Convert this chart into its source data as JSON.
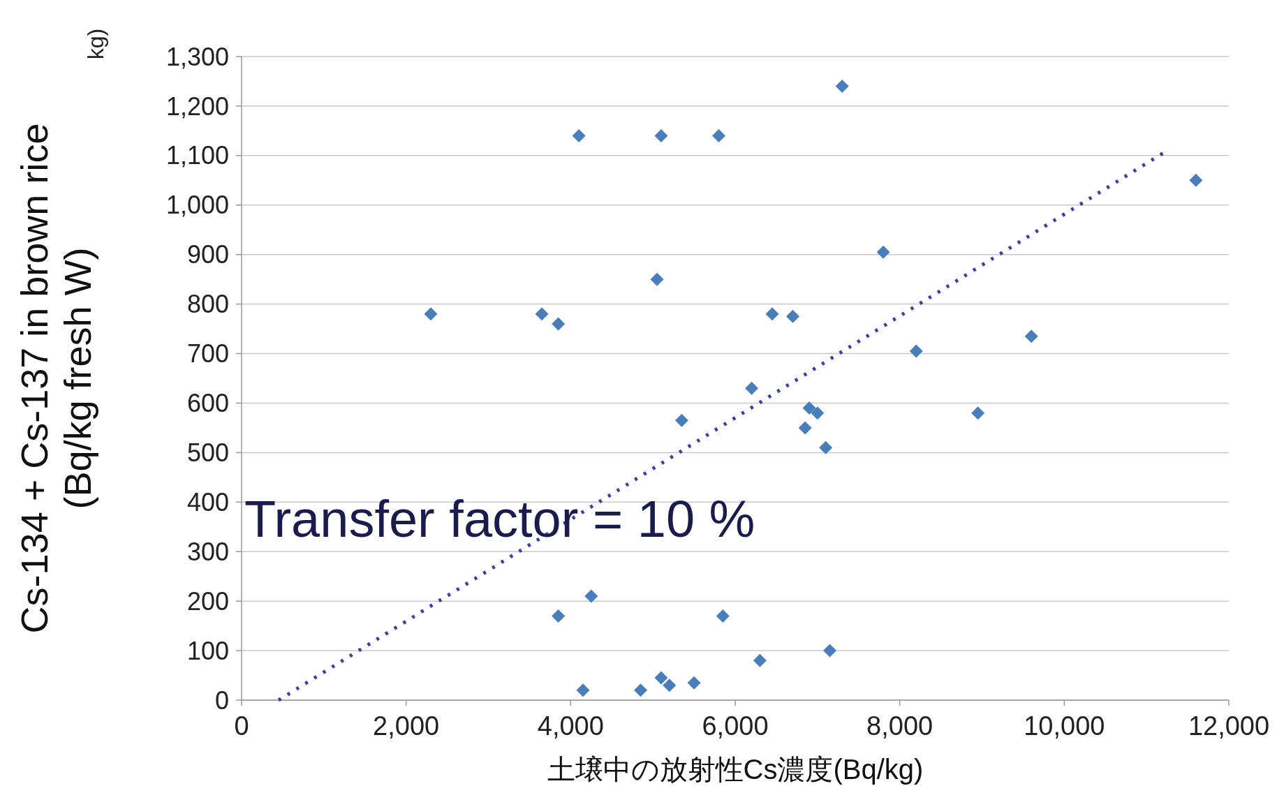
{
  "chart_data": {
    "type": "scatter",
    "xlabel": "土壌中の放射性Cs濃度(Bq/kg)",
    "ylabel": "Cs-134 + Cs-137 in brown rice\n(Bq/kg fresh W)",
    "xlim": [
      0,
      12000
    ],
    "xticks": [
      {
        "value": 0,
        "label": "0"
      },
      {
        "value": 2000,
        "label": "2,000"
      },
      {
        "value": 4000,
        "label": "4,000"
      },
      {
        "value": 6000,
        "label": "6,000"
      },
      {
        "value": 8000,
        "label": "8,000"
      },
      {
        "value": 10000,
        "label": "10,000"
      },
      {
        "value": 12000,
        "label": "12,000"
      }
    ],
    "ylim": [
      0,
      1300
    ],
    "yticks": [
      0,
      100,
      200,
      300,
      400,
      500,
      600,
      700,
      800,
      900,
      {
        "value": 1000,
        "label": "1,000"
      },
      {
        "value": 1100,
        "label": "1,100"
      },
      {
        "value": 1200,
        "label": "1,200"
      },
      {
        "value": 1300,
        "label": "1,300"
      }
    ],
    "grid": "y",
    "marker": "diamond",
    "annotations": [
      "Transfer factor = 10 %",
      "kg)"
    ],
    "series": [
      {
        "color": "#4a7ebb",
        "x": [
          2300,
          3650,
          3850,
          4100,
          5100,
          5800,
          7300,
          5050,
          6450,
          6700,
          7800,
          11600,
          8200,
          9600,
          6200,
          6900,
          7000,
          6850,
          8950,
          7100,
          5350,
          4250,
          3850,
          5850,
          6300,
          7150,
          4150,
          4850,
          5100,
          5200,
          5500
        ],
        "values": [
          780,
          780,
          760,
          1140,
          1140,
          1140,
          1240,
          850,
          780,
          775,
          905,
          1050,
          705,
          735,
          630,
          590,
          580,
          550,
          580,
          510,
          565,
          210,
          170,
          170,
          80,
          100,
          20,
          20,
          45,
          30,
          35
        ]
      },
      {
        "type": "line",
        "color": "#3f3fa3",
        "line_style": "dotted",
        "marker": "none",
        "x": [
          450,
          11250
        ],
        "values": [
          0,
          1110
        ]
      }
    ]
  }
}
